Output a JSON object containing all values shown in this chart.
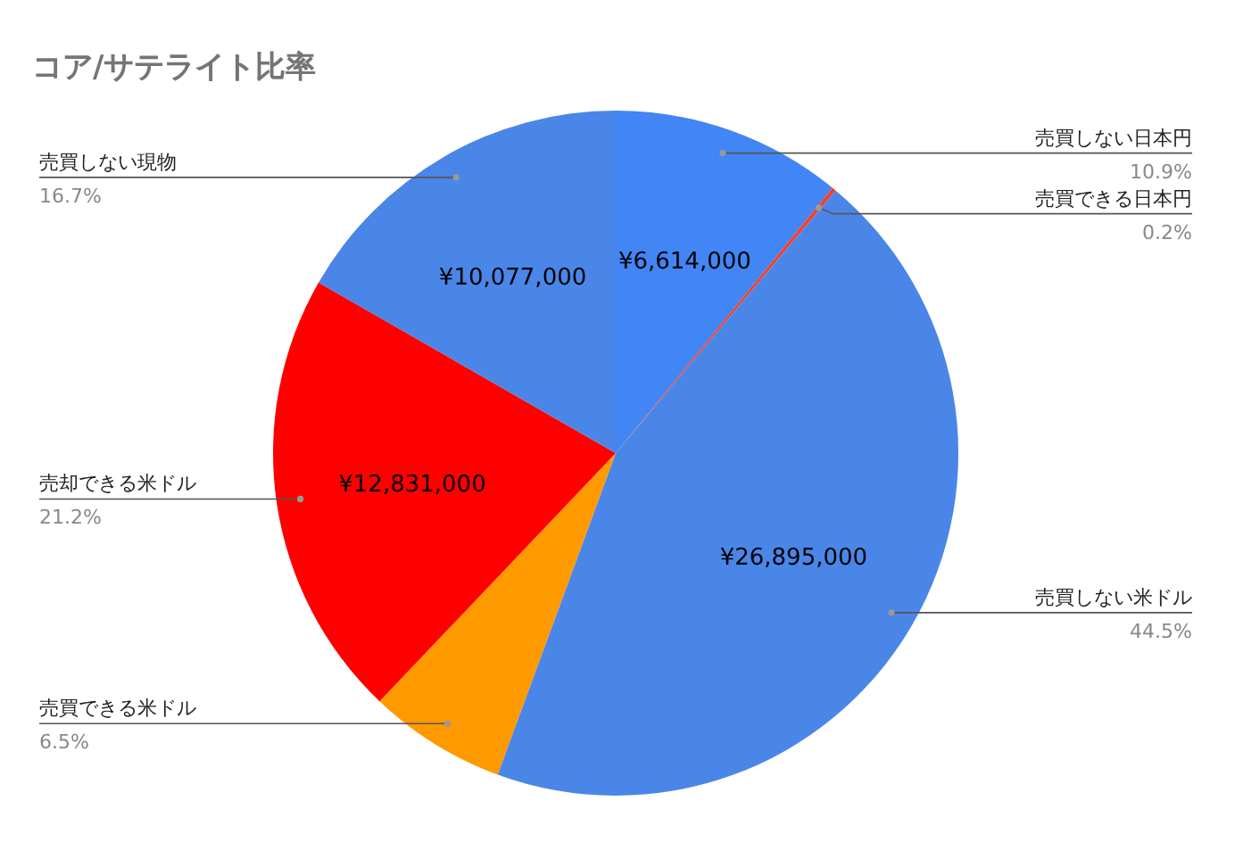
{
  "chart_data": {
    "type": "pie",
    "title": "コア/サテライト比率",
    "categories": [
      "売買しない日本円",
      "売買できる日本円",
      "売買しない米ドル",
      "売買できる米ドル",
      "売却できる米ドル",
      "売買しない現物"
    ],
    "values": [
      10.9,
      0.2,
      44.5,
      6.5,
      21.2,
      16.7
    ],
    "colors": [
      "#4285f4",
      "#ea4335",
      "#4a86e8",
      "#ff9900",
      "#ff0000",
      "#4a86e8"
    ],
    "value_labels": [
      "10.9%",
      "0.2%",
      "44.5%",
      "6.5%",
      "21.2%",
      "16.7%"
    ],
    "annotations": [
      {
        "text": "¥6,614,000",
        "x": "売買しない日本円"
      },
      {
        "text": "¥26,895,000",
        "x": "売買しない米ドル"
      },
      {
        "text": "¥12,831,000",
        "x": "売却できる米ドル"
      },
      {
        "text": "¥10,077,000",
        "x": "売買しない現物"
      }
    ]
  }
}
